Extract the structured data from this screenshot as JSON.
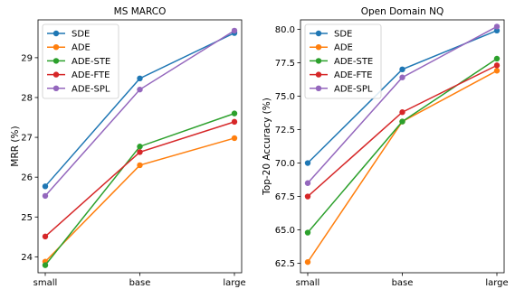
{
  "chart_data": [
    {
      "type": "line",
      "title": "MS MARCO",
      "xlabel": "",
      "ylabel": "MRR (%)",
      "categories": [
        "small",
        "base",
        "large"
      ],
      "ylim": [
        23.6,
        29.95
      ],
      "yticks": [
        24,
        25,
        26,
        27,
        28,
        29
      ],
      "ytick_labels": [
        "24",
        "25",
        "26",
        "27",
        "28",
        "29"
      ],
      "legend": "top-left",
      "grid": false,
      "series": [
        {
          "name": "SDE",
          "color": "#1f77b4",
          "values": [
            25.77,
            28.48,
            29.62
          ]
        },
        {
          "name": "ADE",
          "color": "#ff7f0e",
          "values": [
            23.88,
            26.3,
            26.98
          ]
        },
        {
          "name": "ADE-STE",
          "color": "#2ca02c",
          "values": [
            23.79,
            26.77,
            27.6
          ]
        },
        {
          "name": "ADE-FTE",
          "color": "#d62728",
          "values": [
            24.51,
            26.63,
            27.39
          ]
        },
        {
          "name": "ADE-SPL",
          "color": "#9467bd",
          "values": [
            25.53,
            28.2,
            29.68
          ]
        }
      ]
    },
    {
      "type": "line",
      "title": "Open Domain NQ",
      "xlabel": "",
      "ylabel": "Top-20 Accuracy (%)",
      "categories": [
        "small",
        "base",
        "large"
      ],
      "ylim": [
        61.8,
        80.7
      ],
      "yticks": [
        62.5,
        65.0,
        67.5,
        70.0,
        72.5,
        75.0,
        77.5,
        80.0
      ],
      "ytick_labels": [
        "62.5",
        "65.0",
        "67.5",
        "70.0",
        "72.5",
        "75.0",
        "77.5",
        "80.0"
      ],
      "legend": "top-left",
      "grid": false,
      "series": [
        {
          "name": "SDE",
          "color": "#1f77b4",
          "values": [
            70.0,
            77.0,
            79.9
          ]
        },
        {
          "name": "ADE",
          "color": "#ff7f0e",
          "values": [
            62.6,
            73.1,
            76.9
          ]
        },
        {
          "name": "ADE-STE",
          "color": "#2ca02c",
          "values": [
            64.8,
            73.1,
            77.8
          ]
        },
        {
          "name": "ADE-FTE",
          "color": "#d62728",
          "values": [
            67.5,
            73.8,
            77.3
          ]
        },
        {
          "name": "ADE-SPL",
          "color": "#9467bd",
          "values": [
            68.5,
            76.4,
            80.2
          ]
        }
      ]
    }
  ]
}
